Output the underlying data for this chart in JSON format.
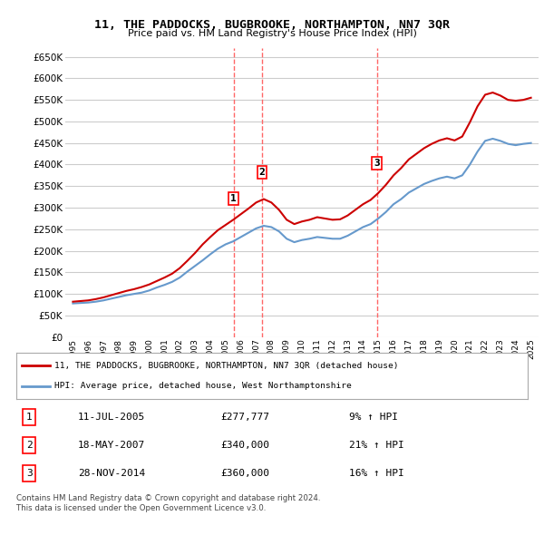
{
  "title": "11, THE PADDOCKS, BUGBROOKE, NORTHAMPTON, NN7 3QR",
  "subtitle": "Price paid vs. HM Land Registry's House Price Index (HPI)",
  "ylabel_ticks": [
    "£0",
    "£50K",
    "£100K",
    "£150K",
    "£200K",
    "£250K",
    "£300K",
    "£350K",
    "£400K",
    "£450K",
    "£500K",
    "£550K",
    "£600K",
    "£650K"
  ],
  "ytick_values": [
    0,
    50000,
    100000,
    150000,
    200000,
    250000,
    300000,
    350000,
    400000,
    450000,
    500000,
    550000,
    600000,
    650000
  ],
  "xlim_start": 1994.5,
  "xlim_end": 2025.5,
  "ylim_min": 0,
  "ylim_max": 670000,
  "grid_color": "#cccccc",
  "background_color": "#ffffff",
  "plot_bg_color": "#ffffff",
  "red_line_color": "#cc0000",
  "blue_line_color": "#6699cc",
  "vertical_line_color": "#ff6666",
  "sale_markers": [
    {
      "year": 2005.53,
      "price": 277777,
      "label": "1"
    },
    {
      "year": 2007.38,
      "price": 340000,
      "label": "2"
    },
    {
      "year": 2014.91,
      "price": 360000,
      "label": "3"
    }
  ],
  "legend_line1": "11, THE PADDOCKS, BUGBROOKE, NORTHAMPTON, NN7 3QR (detached house)",
  "legend_line2": "HPI: Average price, detached house, West Northamptonshire",
  "table_rows": [
    {
      "num": "1",
      "date": "11-JUL-2005",
      "price": "£277,777",
      "change": "9% ↑ HPI"
    },
    {
      "num": "2",
      "date": "18-MAY-2007",
      "price": "£340,000",
      "change": "21% ↑ HPI"
    },
    {
      "num": "3",
      "date": "28-NOV-2014",
      "price": "£360,000",
      "change": "16% ↑ HPI"
    }
  ],
  "footnote1": "Contains HM Land Registry data © Crown copyright and database right 2024.",
  "footnote2": "This data is licensed under the Open Government Licence v3.0.",
  "hpi_data_x": [
    1995,
    1995.5,
    1996,
    1996.5,
    1997,
    1997.5,
    1998,
    1998.5,
    1999,
    1999.5,
    2000,
    2000.5,
    2001,
    2001.5,
    2002,
    2002.5,
    2003,
    2003.5,
    2004,
    2004.5,
    2005,
    2005.5,
    2006,
    2006.5,
    2007,
    2007.5,
    2008,
    2008.5,
    2009,
    2009.5,
    2010,
    2010.5,
    2011,
    2011.5,
    2012,
    2012.5,
    2013,
    2013.5,
    2014,
    2014.5,
    2015,
    2015.5,
    2016,
    2016.5,
    2017,
    2017.5,
    2018,
    2018.5,
    2019,
    2019.5,
    2020,
    2020.5,
    2021,
    2021.5,
    2022,
    2022.5,
    2023,
    2023.5,
    2024,
    2024.5,
    2025
  ],
  "hpi_data_y": [
    78000,
    79000,
    80000,
    82000,
    85000,
    89000,
    93000,
    97000,
    100000,
    103000,
    108000,
    115000,
    121000,
    128000,
    138000,
    152000,
    165000,
    178000,
    192000,
    205000,
    215000,
    222000,
    232000,
    242000,
    252000,
    258000,
    255000,
    245000,
    228000,
    220000,
    225000,
    228000,
    232000,
    230000,
    228000,
    228000,
    235000,
    245000,
    255000,
    262000,
    275000,
    290000,
    308000,
    320000,
    335000,
    345000,
    355000,
    362000,
    368000,
    372000,
    368000,
    375000,
    400000,
    430000,
    455000,
    460000,
    455000,
    448000,
    445000,
    448000,
    450000
  ],
  "property_data_x": [
    1995,
    1995.5,
    1996,
    1996.5,
    1997,
    1997.5,
    1998,
    1998.5,
    1999,
    1999.5,
    2000,
    2000.5,
    2001,
    2001.5,
    2002,
    2002.5,
    2003,
    2003.5,
    2004,
    2004.5,
    2005,
    2005.5,
    2006,
    2006.5,
    2007,
    2007.5,
    2008,
    2008.5,
    2009,
    2009.5,
    2010,
    2010.5,
    2011,
    2011.5,
    2012,
    2012.5,
    2013,
    2013.5,
    2014,
    2014.5,
    2015,
    2015.5,
    2016,
    2016.5,
    2017,
    2017.5,
    2018,
    2018.5,
    2019,
    2019.5,
    2020,
    2020.5,
    2021,
    2021.5,
    2022,
    2022.5,
    2023,
    2023.5,
    2024,
    2024.5,
    2025
  ],
  "property_data_y": [
    82000,
    83500,
    85000,
    88000,
    92000,
    97000,
    102000,
    107000,
    111000,
    116000,
    122000,
    130000,
    138000,
    147000,
    160000,
    177000,
    195000,
    215000,
    232000,
    248000,
    260000,
    272000,
    285000,
    298000,
    312000,
    320000,
    312000,
    295000,
    272000,
    262000,
    268000,
    272000,
    278000,
    275000,
    272000,
    273000,
    282000,
    295000,
    308000,
    318000,
    334000,
    353000,
    375000,
    392000,
    412000,
    425000,
    438000,
    448000,
    456000,
    461000,
    456000,
    465000,
    498000,
    535000,
    562000,
    567000,
    560000,
    550000,
    548000,
    550000,
    555000
  ]
}
